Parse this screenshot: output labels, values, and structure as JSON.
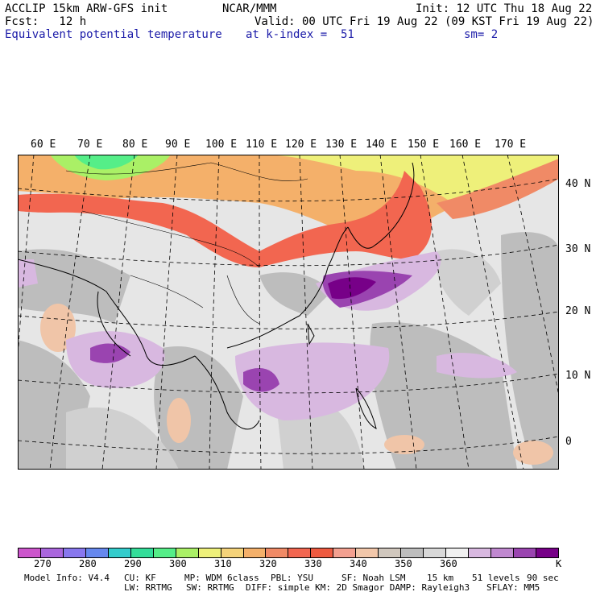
{
  "header": {
    "line1_left": "ACCLIP 15km ARW-GFS init",
    "line1_mid": "NCAR/MMM",
    "line1_right": "Init: 12 UTC Thu 18 Aug 22",
    "line2_left": "Fcst:   12 h",
    "line2_right": "Valid: 00 UTC Fri 19 Aug 22 (09 KST Fri 19 Aug 22)",
    "line3_left": "Equivalent potential temperature",
    "line3_mid": "at k-index =  51",
    "line3_right": "sm= 2"
  },
  "longitude_labels": [
    "60 E",
    "70 E",
    "80 E",
    "90 E",
    "100 E",
    "110 E",
    "120 E",
    "130 E",
    "140 E",
    "150 E",
    "160 E",
    "170 E"
  ],
  "latitude_labels": [
    "40 N",
    "30 N",
    "20 N",
    "10 N",
    "0"
  ],
  "colorbar": {
    "colors": [
      "#cc55cc",
      "#aa66dd",
      "#8877ee",
      "#6688ee",
      "#33cccc",
      "#33dd99",
      "#55ee88",
      "#aaf066",
      "#eef07a",
      "#f5d37a",
      "#f4b06a",
      "#f08a66",
      "#f26650",
      "#ee5a40",
      "#f3a090",
      "#f2c7aa",
      "#d0c7bd",
      "#bdbdbd",
      "#d8d8d8",
      "#f0f0f0",
      "#d8b8e0",
      "#c088d0",
      "#9a44b0",
      "#770088"
    ],
    "labels": [
      "270",
      "280",
      "290",
      "300",
      "310",
      "320",
      "330",
      "340",
      "350",
      "360",
      "K"
    ]
  },
  "footer": {
    "line1": [
      "Model Info: V4.4",
      "CU: KF",
      "MP: WDM 6class",
      "PBL: YSU",
      "SF: Noah LSM",
      "15 km",
      "51 levels",
      "90 sec"
    ],
    "line2": [
      "LW: RRTMG",
      "SW: RRTMG",
      "DIFF: simple KM: 2D Smagor DAMP: Rayleigh3",
      "SFLAY: MM5"
    ]
  }
}
